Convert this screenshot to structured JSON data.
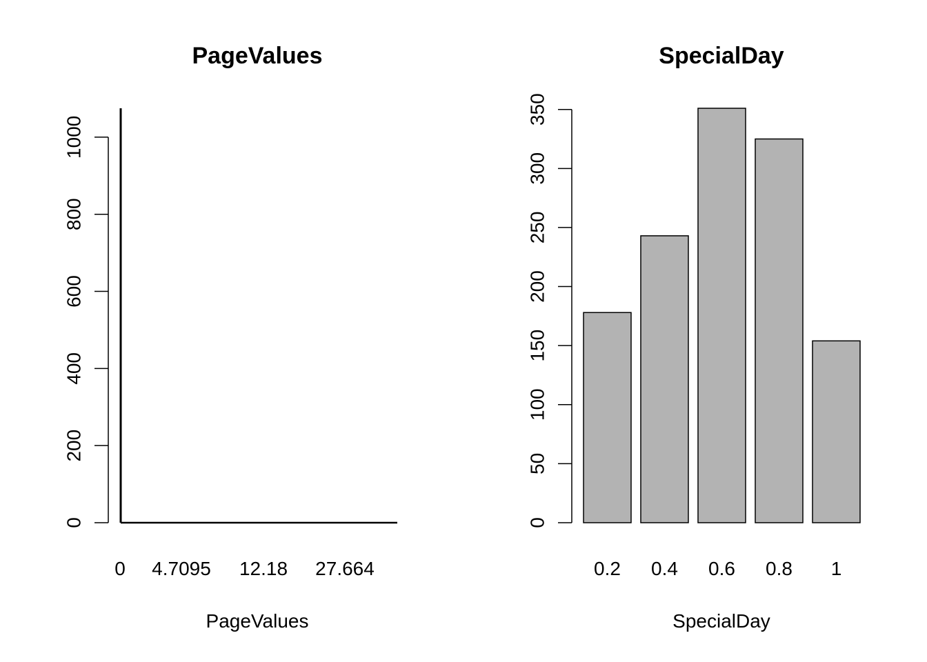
{
  "chart_data": [
    {
      "type": "bar",
      "title": "PageValues",
      "xlabel": "PageValues",
      "ylabel": "",
      "categories": [
        "0",
        "4.7095",
        "12.18",
        "27.664"
      ],
      "bar_values": [
        1075
      ],
      "bar_count_total": 1000,
      "yticks": [
        0,
        200,
        400,
        600,
        800,
        1000
      ],
      "ylim": [
        0,
        1075
      ],
      "grid": false
    },
    {
      "type": "bar",
      "title": "SpecialDay",
      "xlabel": "SpecialDay",
      "ylabel": "",
      "categories": [
        "0.2",
        "0.4",
        "0.6",
        "0.8",
        "1"
      ],
      "values": [
        178,
        243,
        351,
        325,
        154
      ],
      "yticks": [
        0,
        50,
        100,
        150,
        200,
        250,
        300,
        350
      ],
      "ylim": [
        0,
        351
      ],
      "bar_color": "#b3b3b3",
      "grid": false
    }
  ]
}
